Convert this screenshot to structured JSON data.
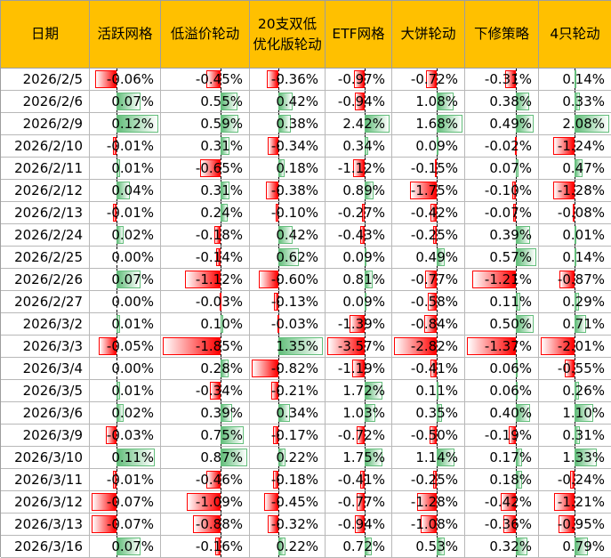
{
  "table": {
    "header": [
      "日期",
      "活跃网格",
      "低溢价轮动",
      "20支双低优化版轮动",
      "ETF网格",
      "大饼轮动",
      "下修策略",
      "4只轮动"
    ],
    "rows": [
      [
        "2026/2/5",
        "-0.06%",
        "-0.45%",
        "-0.36%",
        "-0.97%",
        "-0.72%",
        "-0.31%",
        "0.14%"
      ],
      [
        "2026/2/6",
        "0.07%",
        "0.55%",
        "0.42%",
        "-0.94%",
        "1.08%",
        "0.38%",
        "0.33%"
      ],
      [
        "2026/2/9",
        "0.12%",
        "0.59%",
        "0.38%",
        "2.42%",
        "1.68%",
        "0.49%",
        "2.08%"
      ],
      [
        "2026/2/10",
        "-0.01%",
        "0.31%",
        "-0.34%",
        "0.34%",
        "0.09%",
        "-0.02%",
        "-1.24%"
      ],
      [
        "2026/2/11",
        "0.01%",
        "-0.65%",
        "0.18%",
        "-1.12%",
        "-0.15%",
        "0.07%",
        "0.47%"
      ],
      [
        "2026/2/12",
        "0.04%",
        "0.31%",
        "-0.38%",
        "0.89%",
        "-1.75%",
        "-0.10%",
        "-1.28%"
      ],
      [
        "2026/2/13",
        "-0.01%",
        "0.24%",
        "-0.10%",
        "-0.27%",
        "-0.42%",
        "-0.07%",
        "-0.08%"
      ],
      [
        "2026/2/24",
        "0.02%",
        "-0.18%",
        "0.42%",
        "-0.43%",
        "-0.25%",
        "0.39%",
        "0.01%"
      ],
      [
        "2026/2/25",
        "0.00%",
        "-0.14%",
        "0.62%",
        "0.09%",
        "0.49%",
        "0.57%",
        "0.14%"
      ],
      [
        "2026/2/26",
        "0.07%",
        "-1.12%",
        "-0.60%",
        "0.81%",
        "-0.77%",
        "-1.21%",
        "-0.87%"
      ],
      [
        "2026/2/27",
        "0.00%",
        "-0.03%",
        "-0.13%",
        "0.09%",
        "-0.58%",
        "0.11%",
        "0.29%"
      ],
      [
        "2026/3/2",
        "0.01%",
        "0.10%",
        "-0.03%",
        "-1.39%",
        "-0.84%",
        "0.50%",
        "0.71%"
      ],
      [
        "2026/3/3",
        "-0.05%",
        "-1.85%",
        "1.35%",
        "-3.57%",
        "-2.82%",
        "-1.37%",
        "-2.01%"
      ],
      [
        "2026/3/4",
        "0.00%",
        "0.28%",
        "-0.82%",
        "-1.19%",
        "-0.41%",
        "0.06%",
        "-0.55%"
      ],
      [
        "2026/3/5",
        "0.01%",
        "-0.34%",
        "-0.21%",
        "1.72%",
        "0.11%",
        "0.06%",
        "0.26%"
      ],
      [
        "2026/3/6",
        "0.02%",
        "0.39%",
        "0.34%",
        "1.03%",
        "0.35%",
        "0.40%",
        "1.10%"
      ],
      [
        "2026/3/9",
        "-0.03%",
        "0.75%",
        "-0.17%",
        "-0.72%",
        "-0.50%",
        "-0.19%",
        "0.31%"
      ],
      [
        "2026/3/10",
        "0.11%",
        "0.87%",
        "0.22%",
        "1.75%",
        "1.14%",
        "0.17%",
        "1.33%"
      ],
      [
        "2026/3/11",
        "-0.01%",
        "-0.46%",
        "-0.18%",
        "-0.41%",
        "-0.25%",
        "0.18%",
        "-0.24%"
      ],
      [
        "2026/3/12",
        "-0.07%",
        "-1.09%",
        "-0.45%",
        "-0.77%",
        "-1.28%",
        "-0.42%",
        "-1.21%"
      ],
      [
        "2026/3/13",
        "-0.07%",
        "-0.88%",
        "-0.32%",
        "-0.94%",
        "-1.08%",
        "-0.36%",
        "-0.95%"
      ],
      [
        "2026/3/16",
        "0.07%",
        "-0.16%",
        "0.22%",
        "0.72%",
        "0.53%",
        "0.32%",
        "0.79%"
      ]
    ]
  }
}
